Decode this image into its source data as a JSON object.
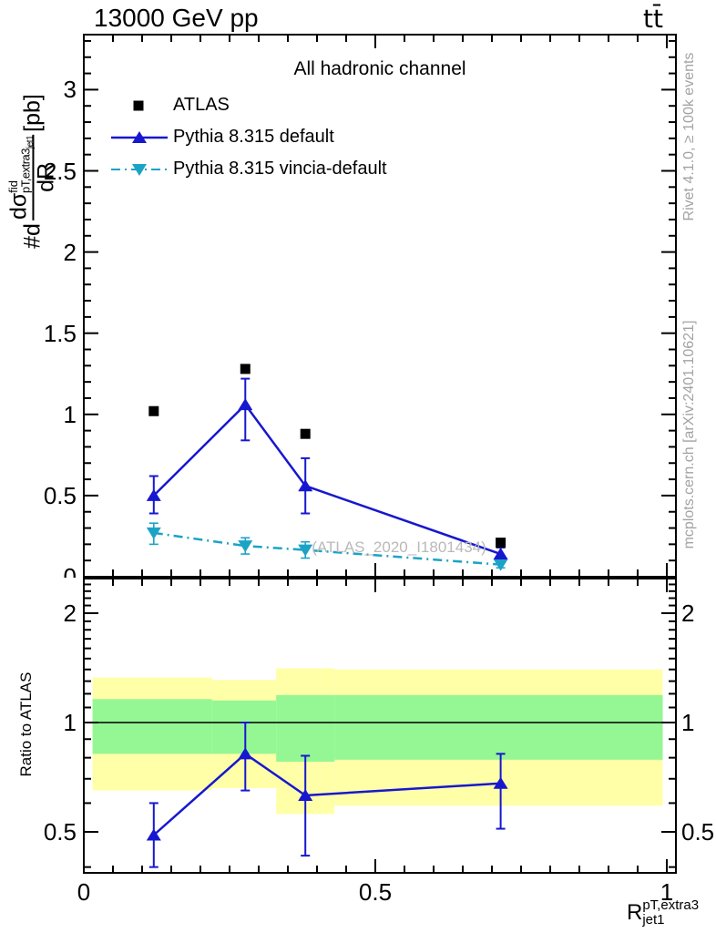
{
  "header": {
    "title_left": "13000 GeV pp",
    "title_right": "tt̄"
  },
  "side_notes": {
    "rivet": "Rivet 4.1.0, ≥ 100k events",
    "mcplots": "mcplots.cern.ch [arXiv:2401.10621]"
  },
  "watermark": "(ATLAS_2020_I1801434)",
  "colors": {
    "atlas": "#000000",
    "pythia_default": "#1717cf",
    "pythia_vincia": "#1ba3c6",
    "band_yellow": "#ffffa8",
    "band_green": "#94f794",
    "side_text": "#a3a3a3",
    "watermark_text": "#b9b9b9"
  },
  "chart_data": [
    {
      "type": "scatter",
      "title": "All hadronic channel",
      "ylabel": "#d dsigma^fid / dR^{pT,extra3}_{jet1} [pb]",
      "ylabel_parts": {
        "prefix": "#d",
        "num_main": "dσ",
        "num_sup": "fid",
        "num_overlap": "pT,extra3",
        "num_overlap_sub": "jet1",
        "den": "dR",
        "unit": "[pb]"
      },
      "xlim": [
        0,
        1.01
      ],
      "ylim": [
        0,
        3.34
      ],
      "ytick_values": [
        0,
        0.5,
        1,
        1.5,
        2,
        2.5,
        3
      ],
      "ytick_labels": [
        "0",
        "0.5",
        "1",
        "1.5",
        "2",
        "2.5",
        "3"
      ],
      "grid": false,
      "legend_position": "top-left",
      "x": [
        0.12,
        0.277,
        0.38,
        0.715
      ],
      "series": [
        {
          "name": "ATLAS",
          "marker": "square",
          "y": [
            1.02,
            1.28,
            0.88,
            0.21
          ]
        },
        {
          "name": "Pythia 8.315 default",
          "marker": "triangle-up",
          "line": "solid",
          "y": [
            0.5,
            1.06,
            0.56,
            0.14
          ],
          "err_up": [
            0.12,
            0.16,
            0.17,
            0.04
          ],
          "err_dn": [
            0.11,
            0.22,
            0.17,
            0.04
          ]
        },
        {
          "name": "Pythia 8.315 vincia-default",
          "marker": "triangle-down",
          "line": "dashdot",
          "y": [
            0.27,
            0.19,
            0.165,
            0.075
          ],
          "err_up": [
            0.06,
            0.05,
            0.05,
            0.02
          ],
          "err_dn": [
            0.07,
            0.05,
            0.05,
            0.02
          ]
        }
      ]
    },
    {
      "type": "ratio",
      "ylabel": "Ratio to ATLAS",
      "yscale": "log",
      "ylim": [
        0.386,
        2.49
      ],
      "ytick_values": [
        0.5,
        1,
        2
      ],
      "ytick_labels": [
        "0.5",
        "1",
        "2"
      ],
      "xtick_values": [
        0,
        0.5,
        1
      ],
      "xtick_labels": [
        "0",
        "0.5",
        "1"
      ],
      "xlabel": "R_jet1^pT,extra3",
      "xlabel_parts": {
        "base": "R",
        "sup": "pT,extra3",
        "sub": "jet1"
      },
      "band_bin_edges": [
        0.015,
        0.22,
        0.33,
        0.43,
        0.993
      ],
      "yellow_band": [
        [
          0.65,
          1.33
        ],
        [
          0.66,
          1.31
        ],
        [
          0.56,
          1.41
        ],
        [
          0.59,
          1.4
        ]
      ],
      "green_band": [
        [
          0.82,
          1.16
        ],
        [
          0.82,
          1.15
        ],
        [
          0.78,
          1.19
        ],
        [
          0.79,
          1.19
        ]
      ],
      "reference_line": 1.0,
      "x": [
        0.12,
        0.277,
        0.38,
        0.715
      ],
      "series": [
        {
          "name": "Pythia 8.315 default",
          "marker": "triangle-up",
          "line": "solid",
          "y": [
            0.49,
            0.82,
            0.63,
            0.68
          ],
          "err_up": [
            0.11,
            0.18,
            0.18,
            0.14
          ],
          "err_dn": [
            0.09,
            0.17,
            0.2,
            0.17
          ]
        }
      ]
    }
  ]
}
